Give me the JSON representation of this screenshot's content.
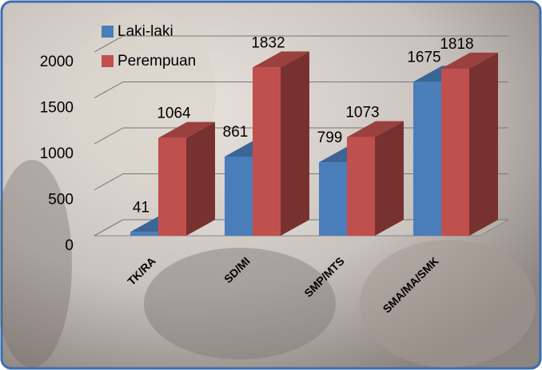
{
  "chart_data": {
    "type": "bar3d",
    "categories": [
      "TK/RA",
      "SD/MI",
      "SMP/MTS",
      "SMA/MA/SMK"
    ],
    "series": [
      {
        "name": "Laki-laki",
        "color": "#4a7ebb",
        "values": [
          41,
          861,
          799,
          1675
        ]
      },
      {
        "name": "Perempuan",
        "color": "#c0504d",
        "values": [
          1064,
          1832,
          1073,
          1818
        ]
      }
    ],
    "ylim": [
      0,
      2000
    ],
    "yticks": [
      0,
      500,
      1000,
      1500,
      2000
    ],
    "grid": true,
    "legend": "top-left"
  }
}
